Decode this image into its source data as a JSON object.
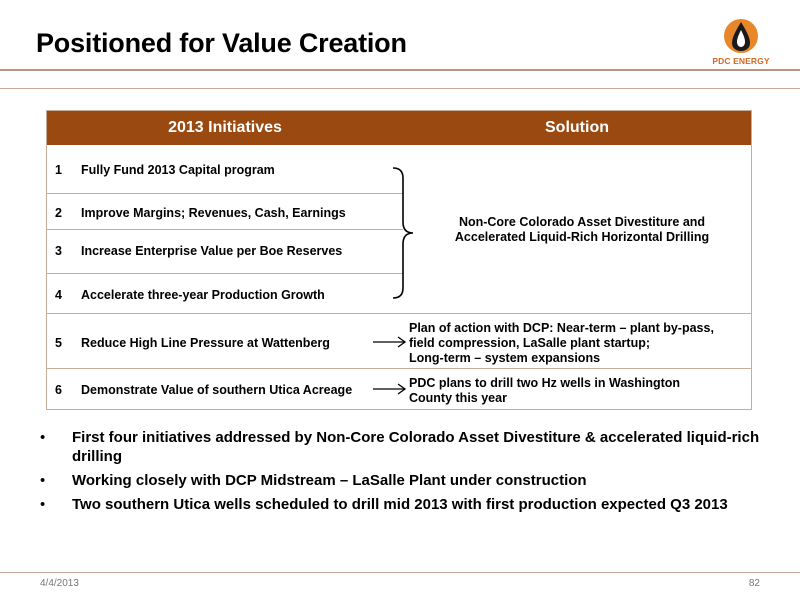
{
  "slide": {
    "title": "Positioned for Value Creation",
    "logo_text": "PDC ENERGY"
  },
  "table": {
    "headers": [
      "2013 Initiatives",
      "Solution"
    ],
    "rows": [
      {
        "num": "1",
        "text": "Fully Fund 2013 Capital program"
      },
      {
        "num": "2",
        "text": "Improve Margins; Revenues, Cash, Earnings"
      },
      {
        "num": "3",
        "text": "Increase Enterprise Value per Boe Reserves"
      },
      {
        "num": "4",
        "text": "Accelerate three-year Production Growth"
      },
      {
        "num": "5",
        "text": "Reduce High Line Pressure at Wattenberg"
      },
      {
        "num": "6",
        "text": "Demonstrate Value of southern Utica Acreage"
      }
    ],
    "solutions": [
      {
        "line1": "Non-Core Colorado Asset Divestiture and",
        "line2": "Accelerated Liquid-Rich Horizontal Drilling"
      },
      {
        "line1": "Plan of action with DCP: Near-term – plant by-pass,",
        "line2": "field compression, LaSalle plant startup;",
        "line3": "Long-term – system expansions"
      },
      {
        "line1": "PDC plans to drill two Hz wells in Washington",
        "line2": "County this year"
      }
    ]
  },
  "bullets": [
    "First four initiatives addressed by Non-Core Colorado Asset Divestiture & accelerated liquid-rich drilling",
    "Working closely with DCP Midstream – LaSalle Plant under construction",
    "Two southern Utica wells scheduled to drill mid 2013 with first production expected Q3 2013"
  ],
  "footer": {
    "date": "4/4/2013",
    "page": "82"
  },
  "colors": {
    "header_bg": "#9a4a10",
    "rule": "#c9ad98",
    "brand_orange": "#d2691e"
  }
}
